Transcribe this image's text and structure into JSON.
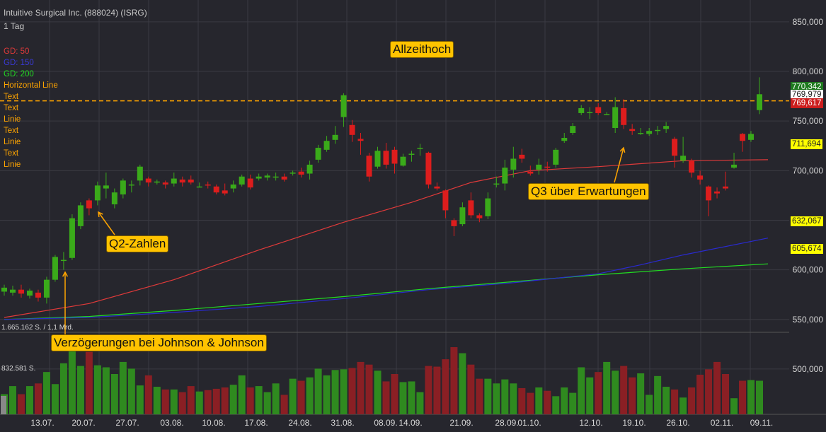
{
  "header": {
    "title": "Intuitive Surgical Inc. (888024) (ISRG)",
    "interval": "1 Tag"
  },
  "legend": [
    {
      "label": "GD: 50",
      "color": "#e03a3a"
    },
    {
      "label": "GD: 150",
      "color": "#3a3ad8"
    },
    {
      "label": "GD: 200",
      "color": "#22dd22"
    },
    {
      "label": "Horizontal Line",
      "color": "#ffa500"
    },
    {
      "label": "Text",
      "color": "#ffa500"
    },
    {
      "label": "Text",
      "color": "#ffa500"
    },
    {
      "label": "Linie",
      "color": "#ffa500"
    },
    {
      "label": "Text",
      "color": "#ffa500"
    },
    {
      "label": "Linie",
      "color": "#ffa500"
    },
    {
      "label": "Text",
      "color": "#ffa500"
    },
    {
      "label": "Linie",
      "color": "#ffa500"
    }
  ],
  "volume_labels": [
    "1.665.162 S. / 1,1 Mrd.",
    "832.581 S."
  ],
  "annotations": [
    {
      "text": "Allzeithoch"
    },
    {
      "text": "Q2-Zahlen"
    },
    {
      "text": "Q3 über Erwartungen"
    },
    {
      "text": "Verzögerungen bei Johnson & Johnson"
    }
  ],
  "price_tags": [
    {
      "text": "770,342",
      "bg": "#1e7a1e",
      "fg": "#ffffff"
    },
    {
      "text": "769,979",
      "bg": "#ffffff",
      "fg": "#222222"
    },
    {
      "text": "769,617",
      "bg": "#cc1d1d",
      "fg": "#ffffff"
    },
    {
      "text": "711,694",
      "bg": "#ffff00",
      "fg": "#222222"
    },
    {
      "text": "632,067",
      "bg": "#ffff00",
      "fg": "#222222"
    },
    {
      "text": "605,674",
      "bg": "#ffff00",
      "fg": "#222222"
    }
  ],
  "colors": {
    "up": "#3aaa1a",
    "down": "#dd1d1d",
    "vol_up": "#2f8a1f",
    "vol_down": "#8a1f24",
    "sma50": "#e03a3a",
    "sma150": "#2a2ad0",
    "sma200": "#22dd22",
    "hline": "#ffa500"
  },
  "chart_data": {
    "type": "candlestick",
    "title": "Intuitive Surgical Inc. (888024) (ISRG)",
    "x_tick_labels": [
      "13.07.",
      "20.07.",
      "27.07.",
      "03.08.",
      "10.08.",
      "17.08.",
      "24.08.",
      "31.08.",
      "08.09.",
      "14.09.",
      "21.09.",
      "28.09.",
      "01.10.",
      "12.10.",
      "19.10.",
      "26.10.",
      "02.11.",
      "09.11."
    ],
    "y_tick_labels": [
      "850,000",
      "800,000",
      "750,000",
      "700,000",
      "650,000",
      "600,000",
      "550,000",
      "500,000"
    ],
    "price_ylim": [
      537,
      872
    ],
    "horizontal_line": 770.342,
    "candles": [
      [
        578,
        582,
        574,
        585
      ],
      [
        577,
        580,
        574,
        584
      ],
      [
        580,
        576,
        572,
        585
      ],
      [
        574,
        579,
        571,
        581
      ],
      [
        577,
        572,
        568,
        580
      ],
      [
        572,
        590,
        566,
        593
      ],
      [
        590,
        613,
        588,
        615
      ],
      [
        610,
        610,
        600,
        618
      ],
      [
        612,
        652,
        610,
        656
      ],
      [
        644,
        665,
        641,
        668
      ],
      [
        670,
        662,
        655,
        672
      ],
      [
        670,
        685,
        665,
        689
      ],
      [
        682,
        685,
        672,
        698
      ],
      [
        666,
        678,
        662,
        682
      ],
      [
        676,
        690,
        672,
        692
      ],
      [
        685,
        686,
        678,
        690
      ],
      [
        690,
        704,
        685,
        706
      ],
      [
        692,
        688,
        684,
        694
      ],
      [
        688,
        689,
        686,
        691
      ],
      [
        688,
        686,
        682,
        690
      ],
      [
        687,
        692,
        684,
        698
      ],
      [
        691,
        688,
        684,
        694
      ],
      [
        691,
        688,
        686,
        695
      ],
      [
        684,
        684,
        683,
        688
      ],
      [
        686,
        685,
        682,
        689
      ],
      [
        684,
        678,
        676,
        686
      ],
      [
        680,
        677,
        675,
        687
      ],
      [
        682,
        686,
        678,
        690
      ],
      [
        686,
        694,
        684,
        696
      ],
      [
        692,
        683,
        681,
        696
      ],
      [
        692,
        694,
        690,
        697
      ],
      [
        693,
        695,
        690,
        697
      ],
      [
        693,
        694,
        690,
        698
      ],
      [
        694,
        691,
        689,
        697
      ],
      [
        697,
        698,
        695,
        700
      ],
      [
        699,
        696,
        693,
        703
      ],
      [
        697,
        706,
        691,
        710
      ],
      [
        711,
        723,
        708,
        726
      ],
      [
        721,
        730,
        719,
        735
      ],
      [
        731,
        736,
        727,
        745
      ],
      [
        754,
        776,
        744,
        778
      ],
      [
        746,
        736,
        729,
        751
      ],
      [
        732,
        730,
        716,
        738
      ],
      [
        715,
        694,
        689,
        718
      ],
      [
        704,
        720,
        702,
        724
      ],
      [
        720,
        706,
        702,
        728
      ],
      [
        721,
        707,
        697,
        724
      ],
      [
        705,
        714,
        704,
        717
      ],
      [
        716,
        717,
        709,
        720
      ],
      [
        722,
        723,
        715,
        727
      ],
      [
        718,
        686,
        682,
        719
      ],
      [
        684,
        682,
        680,
        688
      ],
      [
        680,
        660,
        652,
        681
      ],
      [
        650,
        644,
        634,
        652
      ],
      [
        646,
        663,
        644,
        668
      ],
      [
        670,
        655,
        652,
        678
      ],
      [
        655,
        652,
        648,
        657
      ],
      [
        654,
        672,
        651,
        678
      ],
      [
        687,
        687,
        683,
        694
      ],
      [
        687,
        703,
        680,
        711
      ],
      [
        701,
        712,
        693,
        724
      ],
      [
        716,
        712,
        708,
        722
      ],
      [
        699,
        697,
        695,
        705
      ],
      [
        701,
        706,
        696,
        712
      ],
      [
        704,
        703,
        699,
        709
      ],
      [
        706,
        721,
        703,
        723
      ],
      [
        730,
        733,
        728,
        738
      ],
      [
        738,
        745,
        736,
        748
      ],
      [
        758,
        763,
        756,
        766
      ],
      [
        759,
        759,
        752,
        764
      ],
      [
        764,
        758,
        756,
        768
      ],
      [
        757,
        757,
        756,
        759
      ],
      [
        743,
        764,
        738,
        774
      ],
      [
        763,
        746,
        742,
        772
      ],
      [
        742,
        740,
        736,
        747
      ],
      [
        738,
        738,
        736,
        743
      ],
      [
        737,
        740,
        735,
        743
      ],
      [
        740,
        741,
        736,
        745
      ],
      [
        742,
        745,
        738,
        749
      ],
      [
        732,
        715,
        703,
        734
      ],
      [
        710,
        715,
        708,
        734
      ],
      [
        710,
        698,
        693,
        712
      ],
      [
        695,
        691,
        686,
        700
      ],
      [
        684,
        670,
        654,
        685
      ],
      [
        679,
        677,
        672,
        683
      ],
      [
        684,
        682,
        680,
        699
      ],
      [
        703,
        706,
        702,
        718
      ],
      [
        737,
        730,
        719,
        738
      ],
      [
        731,
        737,
        729,
        740
      ],
      [
        761,
        777,
        757,
        794
      ]
    ],
    "volume": [
      0.3,
      0.42,
      0.3,
      0.42,
      0.46,
      0.63,
      0.45,
      0.76,
      1.0,
      0.72,
      0.93,
      0.73,
      0.7,
      0.6,
      0.78,
      0.68,
      0.43,
      0.58,
      0.41,
      0.37,
      0.37,
      0.33,
      0.42,
      0.34,
      0.36,
      0.38,
      0.4,
      0.44,
      0.58,
      0.4,
      0.42,
      0.33,
      0.46,
      0.29,
      0.53,
      0.5,
      0.55,
      0.68,
      0.58,
      0.66,
      0.67,
      0.69,
      0.78,
      0.74,
      0.65,
      0.49,
      0.6,
      0.48,
      0.49,
      0.33,
      0.72,
      0.71,
      0.82,
      1.0,
      0.91,
      0.74,
      0.53,
      0.53,
      0.46,
      0.52,
      0.46,
      0.39,
      0.32,
      0.4,
      0.35,
      0.27,
      0.4,
      0.32,
      0.7,
      0.55,
      0.63,
      0.78,
      0.65,
      0.72,
      0.55,
      0.61,
      0.29,
      0.57,
      0.41,
      0.37,
      0.25,
      0.4,
      0.59,
      0.67,
      0.78,
      0.6,
      0.24,
      0.5,
      0.51,
      0.5
    ],
    "sma50": [
      [
        0,
        552
      ],
      [
        10,
        566
      ],
      [
        20,
        590
      ],
      [
        30,
        620
      ],
      [
        40,
        648
      ],
      [
        48,
        668
      ],
      [
        55,
        688
      ],
      [
        62,
        700
      ],
      [
        70,
        704
      ],
      [
        80,
        710
      ],
      [
        90,
        711
      ]
    ],
    "sma150": [
      [
        0,
        550
      ],
      [
        10,
        552
      ],
      [
        20,
        557
      ],
      [
        30,
        563
      ],
      [
        40,
        571
      ],
      [
        50,
        580
      ],
      [
        60,
        587
      ],
      [
        70,
        596
      ],
      [
        75,
        605
      ],
      [
        80,
        615
      ],
      [
        90,
        632
      ]
    ],
    "sma200": [
      [
        0,
        550
      ],
      [
        10,
        553
      ],
      [
        20,
        559
      ],
      [
        30,
        566
      ],
      [
        40,
        573
      ],
      [
        50,
        581
      ],
      [
        60,
        588
      ],
      [
        70,
        595
      ],
      [
        80,
        601
      ],
      [
        90,
        606
      ]
    ]
  }
}
